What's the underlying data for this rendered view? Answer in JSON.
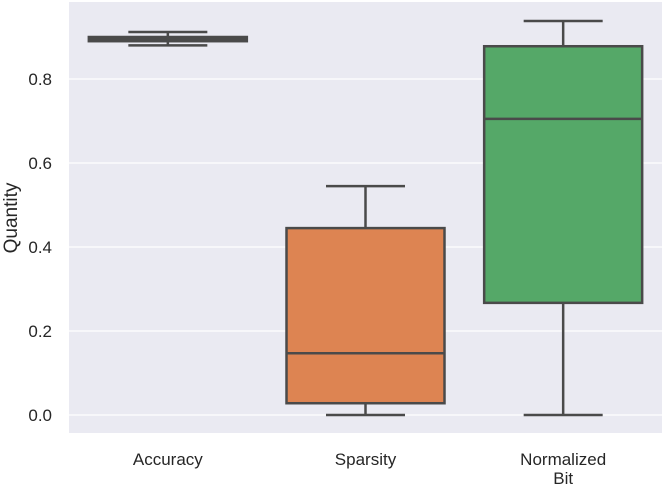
{
  "chart_data": {
    "type": "box",
    "title": "",
    "xlabel": "",
    "ylabel": "Quantity",
    "ylim": [
      -0.05,
      0.98
    ],
    "yticks": [
      0.0,
      0.2,
      0.4,
      0.6,
      0.8
    ],
    "ytick_labels": [
      "0.0",
      "0.2",
      "0.4",
      "0.6",
      "0.8"
    ],
    "grid": true,
    "categories": [
      {
        "label": [
          "Accuracy"
        ],
        "color": "#4c72b0",
        "whisker_low": 0.88,
        "q1": 0.89,
        "median": 0.895,
        "q3": 0.9,
        "whisker_high": 0.912
      },
      {
        "label": [
          "Sparsity"
        ],
        "color": "#dd8452",
        "whisker_low": 0.0,
        "q1": 0.028,
        "median": 0.147,
        "q3": 0.445,
        "whisker_high": 0.545
      },
      {
        "label": [
          "Normalized",
          "Bit"
        ],
        "color": "#55a868",
        "whisker_low": 0.0,
        "q1": 0.267,
        "median": 0.705,
        "q3": 0.878,
        "whisker_high": 0.938
      }
    ],
    "colors": {
      "background": "#eaeaf2",
      "grid": "#ffffff",
      "line": "#4a4a4a"
    }
  }
}
